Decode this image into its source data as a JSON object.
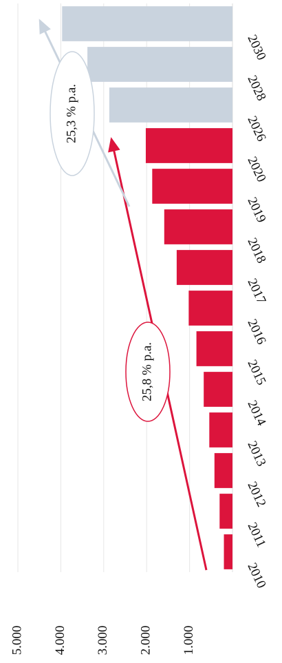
{
  "chart_data": {
    "type": "bar",
    "orientation": "horizontal",
    "categories": [
      "2010",
      "2011",
      "2012",
      "2013",
      "2014",
      "2015",
      "2016",
      "2017",
      "2018",
      "2019",
      "2020",
      "2026",
      "2028",
      "2030"
    ],
    "values": [
      200,
      300,
      420,
      540,
      670,
      840,
      1020,
      1300,
      1590,
      1870,
      2020,
      2870,
      3380,
      3970
    ],
    "colors": [
      "#dc143c",
      "#dc143c",
      "#dc143c",
      "#dc143c",
      "#dc143c",
      "#dc143c",
      "#dc143c",
      "#dc143c",
      "#dc143c",
      "#dc143c",
      "#dc143c",
      "#c9d3de",
      "#c9d3de",
      "#c9d3de"
    ],
    "ylim": [
      0,
      5000
    ],
    "yticks": [
      {
        "value": 1000,
        "label": "1.000"
      },
      {
        "value": 2000,
        "label": "2.000"
      },
      {
        "value": 3000,
        "label": "3.000"
      },
      {
        "value": 4000,
        "label": "4.000"
      },
      {
        "value": 5000,
        "label": "5.000"
      }
    ],
    "grid": true,
    "annotations": [
      "25,8 % p.a.",
      "25,3 % p.a."
    ]
  }
}
